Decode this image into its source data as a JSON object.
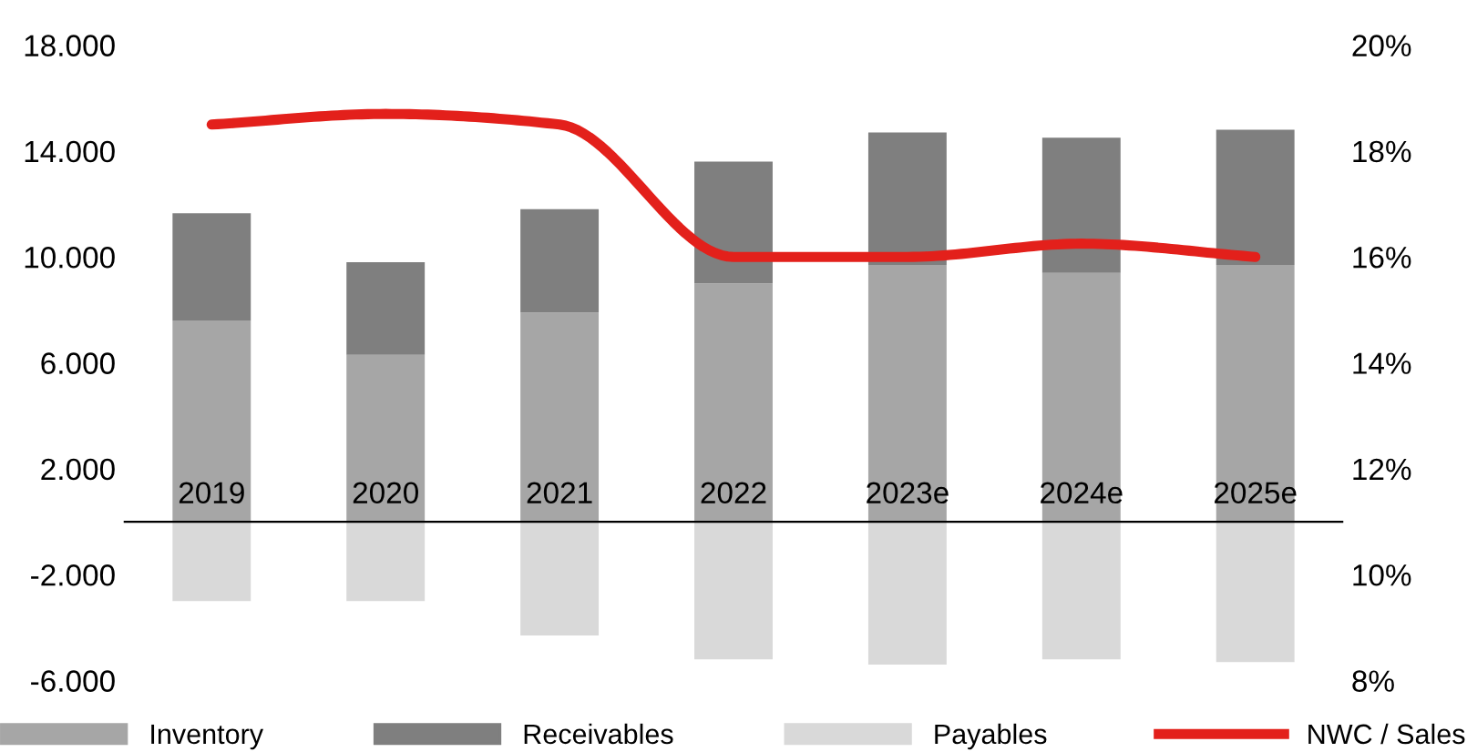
{
  "chart_data": {
    "type": "bar",
    "stacked": true,
    "categories": [
      "2019",
      "2020",
      "2021",
      "2022",
      "2023e",
      "2024e",
      "2025e"
    ],
    "series": [
      {
        "name": "Inventory",
        "color": "#a6a6a6",
        "values": [
          7600,
          6300,
          7900,
          9000,
          9700,
          9400,
          9700
        ]
      },
      {
        "name": "Receivables",
        "color": "#7f7f7f",
        "values": [
          4050,
          3500,
          3900,
          4600,
          5000,
          5100,
          5100
        ]
      },
      {
        "name": "Payables",
        "color": "#d9d9d9",
        "values": [
          -3000,
          -3000,
          -4300,
          -5200,
          -5400,
          -5200,
          -5300
        ]
      },
      {
        "name": "NWC / Sales",
        "type": "line",
        "axis": "y2",
        "color": "#e3201b",
        "values": [
          18.5,
          18.7,
          18.5,
          16.0,
          16.0,
          16.25,
          16.0
        ]
      }
    ],
    "ylim": [
      -6000,
      18000
    ],
    "yticks": [
      {
        "value": -6000,
        "label": "-6.000"
      },
      {
        "value": -2000,
        "label": "-2.000"
      },
      {
        "value": 2000,
        "label": "2.000"
      },
      {
        "value": 6000,
        "label": "6.000"
      },
      {
        "value": 10000,
        "label": "10.000"
      },
      {
        "value": 14000,
        "label": "14.000"
      },
      {
        "value": 18000,
        "label": "18.000"
      }
    ],
    "y2lim": [
      8,
      20
    ],
    "y2ticks": [
      {
        "value": 8,
        "label": "8%"
      },
      {
        "value": 10,
        "label": "10%"
      },
      {
        "value": 12,
        "label": "12%"
      },
      {
        "value": 14,
        "label": "14%"
      },
      {
        "value": 16,
        "label": "16%"
      },
      {
        "value": 18,
        "label": "18%"
      },
      {
        "value": 20,
        "label": "20%"
      }
    ],
    "grid": false,
    "legend": "bottom",
    "marker": "none",
    "line_style": "solid"
  }
}
